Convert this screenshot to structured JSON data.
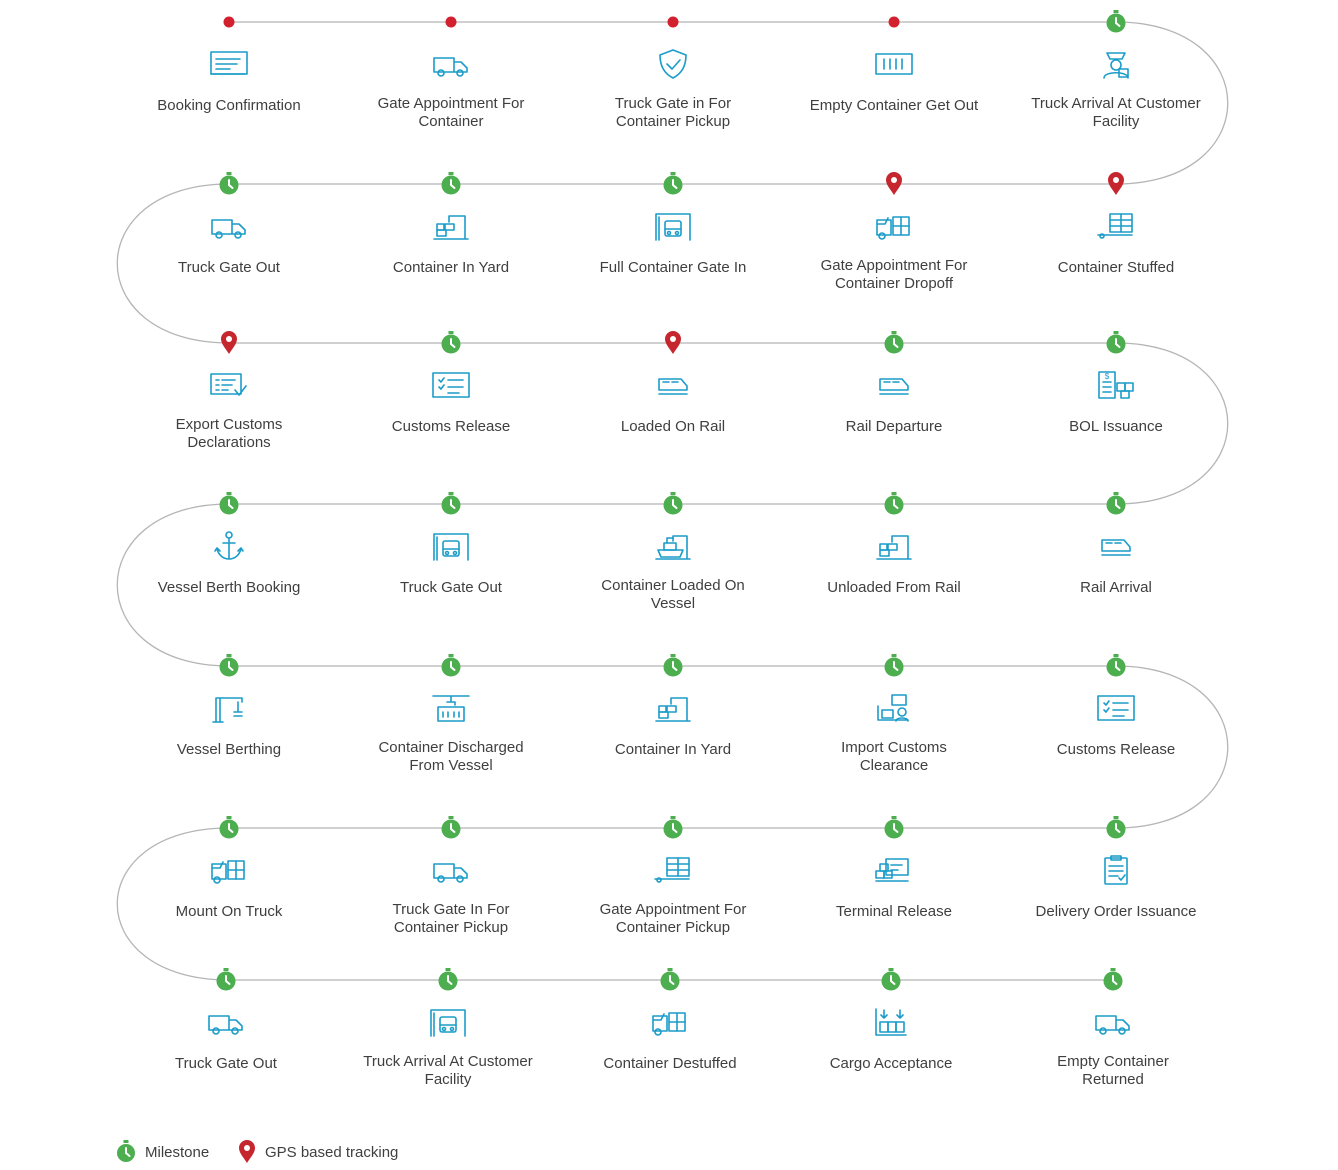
{
  "colors": {
    "path_line": "#b5b5b5",
    "milestone": "#4cae4f",
    "gps": "#c6262e",
    "event_dot": "#d3202f",
    "icon": "#1b9cc9",
    "text": "#3f3f3f"
  },
  "rows": [
    {
      "nodes": [
        {
          "marker": "dot",
          "icon": "booking-document-icon",
          "label": [
            "Booking Confirmation"
          ]
        },
        {
          "marker": "dot",
          "icon": "truck-icon",
          "label": [
            "Gate Appointment For",
            "Container"
          ]
        },
        {
          "marker": "dot",
          "icon": "shield-check-icon",
          "label": [
            "Truck Gate in For",
            "Container Pickup"
          ]
        },
        {
          "marker": "dot",
          "icon": "empty-container-icon",
          "label": [
            "Empty Container Get Out"
          ]
        },
        {
          "marker": "milestone",
          "icon": "driver-icon",
          "label": [
            "Truck Arrival At Customer",
            "Facility"
          ]
        }
      ]
    },
    {
      "nodes": [
        {
          "marker": "milestone",
          "icon": "truck-icon",
          "label": [
            "Truck Gate Out"
          ]
        },
        {
          "marker": "milestone",
          "icon": "yard-crane-icon",
          "label": [
            "Container In Yard"
          ]
        },
        {
          "marker": "milestone",
          "icon": "gate-truck-icon",
          "label": [
            "Full Container Gate In"
          ]
        },
        {
          "marker": "gps",
          "icon": "truck-container-icon",
          "label": [
            "Gate Appointment For",
            "Container Dropoff"
          ]
        },
        {
          "marker": "gps",
          "icon": "container-stuffed-icon",
          "label": [
            "Container Stuffed"
          ]
        }
      ]
    },
    {
      "nodes": [
        {
          "marker": "gps",
          "icon": "declaration-icon",
          "label": [
            "Export Customs",
            "Declarations"
          ]
        },
        {
          "marker": "milestone",
          "icon": "customs-release-icon",
          "label": [
            "Customs Release"
          ]
        },
        {
          "marker": "gps",
          "icon": "train-icon",
          "label": [
            "Loaded On Rail"
          ]
        },
        {
          "marker": "milestone",
          "icon": "train-icon",
          "label": [
            "Rail Departure"
          ]
        },
        {
          "marker": "milestone",
          "icon": "bol-document-icon",
          "label": [
            "BOL Issuance"
          ]
        }
      ]
    },
    {
      "nodes": [
        {
          "marker": "milestone",
          "icon": "anchor-icon",
          "label": [
            "Vessel Berth Booking"
          ]
        },
        {
          "marker": "milestone",
          "icon": "gate-truck-icon",
          "label": [
            "Truck Gate Out"
          ]
        },
        {
          "marker": "milestone",
          "icon": "ship-crane-icon",
          "label": [
            "Container Loaded On",
            "Vessel"
          ]
        },
        {
          "marker": "milestone",
          "icon": "yard-crane-icon",
          "label": [
            "Unloaded From Rail"
          ]
        },
        {
          "marker": "milestone",
          "icon": "train-icon",
          "label": [
            "Rail Arrival"
          ]
        }
      ]
    },
    {
      "nodes": [
        {
          "marker": "milestone",
          "icon": "berth-crane-icon",
          "label": [
            "Vessel Berthing"
          ]
        },
        {
          "marker": "milestone",
          "icon": "discharge-icon",
          "label": [
            "Container Discharged",
            "From Vessel"
          ]
        },
        {
          "marker": "milestone",
          "icon": "yard-crane-icon",
          "label": [
            "Container In Yard"
          ]
        },
        {
          "marker": "milestone",
          "icon": "import-customs-icon",
          "label": [
            "Import Customs",
            "Clearance"
          ]
        },
        {
          "marker": "milestone",
          "icon": "customs-release-icon",
          "label": [
            "Customs Release"
          ]
        }
      ]
    },
    {
      "nodes": [
        {
          "marker": "milestone",
          "icon": "truck-container-icon",
          "label": [
            "Mount On Truck"
          ]
        },
        {
          "marker": "milestone",
          "icon": "truck-icon",
          "label": [
            "Truck Gate In For",
            "Container Pickup"
          ]
        },
        {
          "marker": "milestone",
          "icon": "container-stuffed-icon",
          "label": [
            "Gate Appointment For",
            "Container Pickup"
          ]
        },
        {
          "marker": "milestone",
          "icon": "terminal-release-icon",
          "label": [
            "Terminal Release"
          ]
        },
        {
          "marker": "milestone",
          "icon": "clipboard-icon",
          "label": [
            "Delivery Order Issuance"
          ]
        }
      ]
    },
    {
      "nodes": [
        {
          "marker": "milestone",
          "icon": "truck-icon",
          "label": [
            "Truck Gate Out"
          ]
        },
        {
          "marker": "milestone",
          "icon": "gate-truck-icon",
          "label": [
            "Truck Arrival At Customer",
            "Facility"
          ]
        },
        {
          "marker": "milestone",
          "icon": "truck-container-icon",
          "label": [
            "Container Destuffed"
          ]
        },
        {
          "marker": "milestone",
          "icon": "cargo-acceptance-icon",
          "label": [
            "Cargo Acceptance"
          ]
        },
        {
          "marker": "milestone",
          "icon": "truck-icon",
          "label": [
            "Empty Container",
            "Returned"
          ]
        }
      ]
    }
  ],
  "legend": {
    "milestone_label": "Milestone",
    "gps_label": "GPS based tracking"
  }
}
